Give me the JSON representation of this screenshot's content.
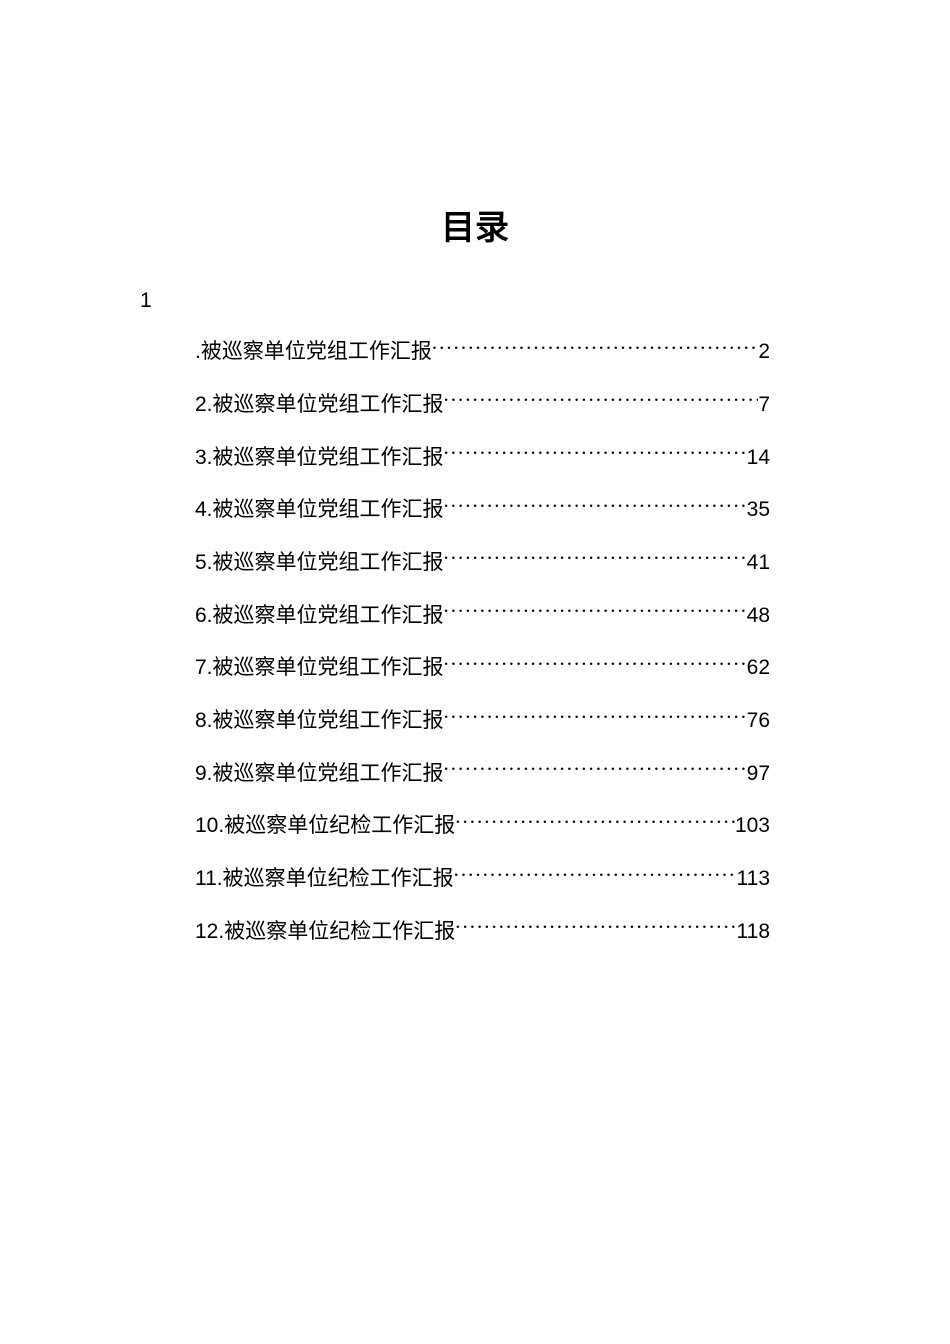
{
  "title": "目录",
  "sectionNumber": "1",
  "entries": [
    {
      "prefix": ".",
      "label": "被巡察单位党组工作汇报",
      "page": "2"
    },
    {
      "prefix": "2.",
      "label": "被巡察单位党组工作汇报",
      "page": "7"
    },
    {
      "prefix": "3.",
      "label": "被巡察单位党组工作汇报",
      "page": "14"
    },
    {
      "prefix": "4.",
      "label": "被巡察单位党组工作汇报",
      "page": "35"
    },
    {
      "prefix": "5.",
      "label": "被巡察单位党组工作汇报",
      "page": "41"
    },
    {
      "prefix": "6.",
      "label": "被巡察单位党组工作汇报",
      "page": "48"
    },
    {
      "prefix": "7.",
      "label": "被巡察单位党组工作汇报",
      "page": "62"
    },
    {
      "prefix": "8.",
      "label": "被巡察单位党组工作汇报",
      "page": "76"
    },
    {
      "prefix": "9.",
      "label": "被巡察单位党组工作汇报",
      "page": "97"
    },
    {
      "prefix": "10.",
      "label": "被巡察单位纪检工作汇报",
      "page": "103"
    },
    {
      "prefix": "11.",
      "label": "被巡察单位纪检工作汇报",
      "page": "113"
    },
    {
      "prefix": "12.",
      "label": "被巡察单位纪检工作汇报",
      "page": "118"
    }
  ],
  "styling": {
    "pageWidth": 950,
    "pageHeight": 1344,
    "backgroundColor": "#ffffff",
    "textColor": "#000000",
    "titleFontSize": 34,
    "titleFontWeight": "bold",
    "titleFontFamily": "SimHei",
    "bodyFontSize": 21,
    "bodyFontFamily": "SimSun",
    "numberFontFamily": "Arial",
    "lineSpacing": 18,
    "pagePaddingTop": 200,
    "pagePaddingLeft": 120,
    "pagePaddingRight": 120,
    "tocIndentLeft": 75,
    "tocIndentRight": 60
  }
}
